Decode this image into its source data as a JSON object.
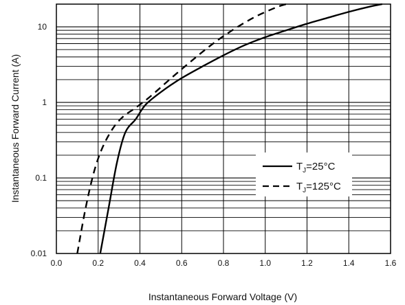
{
  "chart_data": {
    "type": "line",
    "title": "",
    "xlabel": "Instantaneous Forward Voltage (V)",
    "ylabel": "Instantaneous Forward Current (A)",
    "xlim": [
      0,
      1.6
    ],
    "ylim": [
      0.01,
      20
    ],
    "yscale": "log",
    "grid": true,
    "legend_position": "right",
    "x_ticks": [
      "0.0",
      "0.2",
      "0.4",
      "0.6",
      "0.8",
      "1.0",
      "1.2",
      "1.4",
      "1.6"
    ],
    "y_ticks": [
      "0.01",
      "0.1",
      "1",
      "10"
    ],
    "series": [
      {
        "name_prefix": "T",
        "name_subscript": "J",
        "name_suffix": "=25°C",
        "style": "solid",
        "color": "#000000",
        "x": [
          0.21,
          0.25,
          0.29,
          0.33,
          0.38,
          0.43,
          0.52,
          0.6,
          0.7,
          0.8,
          0.9,
          1.0,
          1.1,
          1.2,
          1.3,
          1.4,
          1.5,
          1.56
        ],
        "y": [
          0.01,
          0.04,
          0.16,
          0.4,
          0.6,
          0.95,
          1.5,
          2.1,
          3.0,
          4.2,
          5.7,
          7.3,
          9.0,
          11.0,
          13.2,
          15.8,
          18.5,
          20
        ]
      },
      {
        "name_prefix": "T",
        "name_subscript": "J",
        "name_suffix": "=125°C",
        "style": "dashed",
        "color": "#000000",
        "x": [
          0.1,
          0.14,
          0.18,
          0.22,
          0.27,
          0.32,
          0.38,
          0.45,
          0.55,
          0.65,
          0.75,
          0.85,
          0.95,
          1.05,
          1.1
        ],
        "y": [
          0.01,
          0.04,
          0.12,
          0.25,
          0.45,
          0.65,
          0.85,
          1.2,
          2.1,
          3.6,
          6.0,
          9.3,
          13.5,
          18.0,
          20
        ]
      }
    ]
  }
}
